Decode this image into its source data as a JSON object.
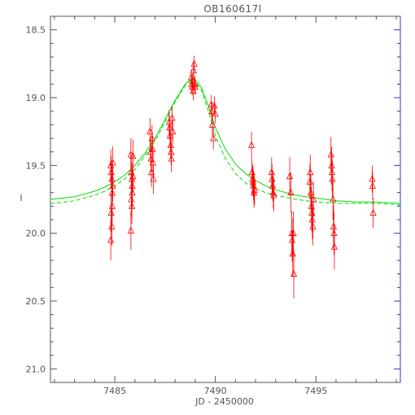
{
  "chart_data": {
    "type": "scatter",
    "title": "OB160617l",
    "xlabel": "JD - 2450000",
    "ylabel": "I",
    "xlim": [
      7481.8,
      7499.2
    ],
    "ylim": [
      21.1,
      18.4
    ],
    "y_inverted": true,
    "x_ticks": [
      7485,
      7490,
      7495
    ],
    "y_ticks": [
      18.5,
      19.0,
      19.5,
      20.0,
      20.5,
      21.0
    ],
    "x_tick_labels": [
      "7485",
      "7490",
      "7495"
    ],
    "y_tick_labels": [
      "18.5",
      "19.0",
      "19.5",
      "20.0",
      "20.5",
      "21.0"
    ],
    "grid": false,
    "colors": {
      "points": "#ff0000",
      "model": "#00dd00",
      "axes": "#555555",
      "right_axis": "#3333cc"
    },
    "series": [
      {
        "kind": "scatter_errorbar",
        "marker": "triangle",
        "x": [
          7484.8,
          7484.8,
          7484.82,
          7484.82,
          7484.85,
          7484.85,
          7484.87,
          7484.87,
          7484.9,
          7484.9,
          7485.8,
          7485.8,
          7485.82,
          7485.82,
          7485.85,
          7485.85,
          7485.87,
          7485.87,
          7485.9,
          7485.9,
          7486.75,
          7486.78,
          7486.8,
          7486.82,
          7486.85,
          7486.88,
          7486.9,
          7486.92,
          7487.7,
          7487.72,
          7487.75,
          7487.78,
          7487.8,
          7487.82,
          7487.85,
          7487.88,
          7488.8,
          7488.82,
          7488.85,
          7488.88,
          7488.9,
          7488.92,
          7488.95,
          7488.98,
          7489.0,
          7489.8,
          7489.82,
          7489.85,
          7489.9,
          7489.95,
          7490.0,
          7491.8,
          7491.82,
          7491.85,
          7491.88,
          7491.9,
          7491.92,
          7491.95,
          7492.8,
          7492.82,
          7492.85,
          7492.88,
          7492.9,
          7493.7,
          7493.75,
          7493.8,
          7493.82,
          7493.85,
          7493.88,
          7493.9,
          7494.7,
          7494.72,
          7494.75,
          7494.78,
          7494.8,
          7494.82,
          7494.85,
          7494.88,
          7495.75,
          7495.78,
          7495.8,
          7495.82,
          7495.85,
          7495.88,
          7495.9,
          7495.92,
          7497.8,
          7497.82,
          7497.85
        ],
        "y": [
          19.5,
          20.05,
          19.55,
          19.85,
          19.6,
          19.95,
          19.7,
          19.8,
          19.48,
          19.65,
          19.42,
          19.98,
          19.55,
          19.75,
          19.6,
          19.8,
          19.65,
          19.7,
          19.43,
          19.58,
          19.25,
          19.4,
          19.45,
          19.55,
          19.3,
          19.38,
          19.48,
          19.6,
          19.18,
          19.22,
          19.28,
          19.35,
          19.4,
          19.45,
          19.15,
          19.25,
          18.85,
          18.9,
          18.92,
          18.88,
          18.95,
          18.8,
          18.75,
          18.9,
          18.92,
          19.05,
          19.1,
          19.2,
          19.3,
          19.06,
          19.12,
          19.35,
          19.55,
          19.6,
          19.62,
          19.65,
          19.7,
          19.68,
          19.55,
          19.6,
          19.65,
          19.7,
          19.72,
          19.58,
          19.7,
          20.0,
          20.05,
          20.15,
          20.0,
          20.3,
          19.62,
          19.55,
          19.7,
          19.8,
          19.85,
          19.9,
          19.95,
          19.75,
          19.42,
          19.5,
          19.55,
          19.6,
          19.75,
          19.95,
          20.0,
          20.1,
          19.6,
          19.65,
          19.85
        ],
        "yerr": [
          0.12,
          0.15,
          0.12,
          0.14,
          0.13,
          0.14,
          0.12,
          0.13,
          0.12,
          0.12,
          0.12,
          0.14,
          0.12,
          0.13,
          0.12,
          0.13,
          0.12,
          0.12,
          0.12,
          0.12,
          0.1,
          0.1,
          0.1,
          0.11,
          0.1,
          0.1,
          0.1,
          0.11,
          0.09,
          0.09,
          0.09,
          0.1,
          0.1,
          0.1,
          0.09,
          0.09,
          0.06,
          0.06,
          0.06,
          0.06,
          0.07,
          0.06,
          0.06,
          0.06,
          0.06,
          0.07,
          0.07,
          0.08,
          0.08,
          0.07,
          0.07,
          0.1,
          0.1,
          0.11,
          0.11,
          0.11,
          0.11,
          0.11,
          0.11,
          0.11,
          0.11,
          0.12,
          0.12,
          0.14,
          0.15,
          0.16,
          0.16,
          0.17,
          0.16,
          0.18,
          0.13,
          0.13,
          0.13,
          0.14,
          0.14,
          0.14,
          0.14,
          0.13,
          0.13,
          0.14,
          0.14,
          0.14,
          0.15,
          0.16,
          0.16,
          0.17,
          0.1,
          0.1,
          0.11
        ]
      },
      {
        "kind": "model_line",
        "style": "solid",
        "x": [
          7481.8,
          7482.5,
          7483.0,
          7483.5,
          7484.0,
          7484.5,
          7485.0,
          7485.5,
          7486.0,
          7486.5,
          7487.0,
          7487.5,
          7488.0,
          7488.5,
          7488.9,
          7489.3,
          7489.7,
          7490.0,
          7490.5,
          7491.0,
          7491.5,
          7492.0,
          7492.5,
          7493.0,
          7494.0,
          7495.0,
          7496.0,
          7497.0,
          7498.0,
          7499.2
        ],
        "y": [
          19.75,
          19.74,
          19.73,
          19.71,
          19.69,
          19.66,
          19.62,
          19.57,
          19.5,
          19.41,
          19.3,
          19.16,
          19.02,
          18.9,
          18.85,
          18.92,
          19.08,
          19.22,
          19.38,
          19.49,
          19.56,
          19.61,
          19.65,
          19.68,
          19.72,
          19.74,
          19.76,
          19.77,
          19.77,
          19.78
        ]
      },
      {
        "kind": "model_line",
        "style": "dashed",
        "x": [
          7481.8,
          7482.5,
          7483.0,
          7483.5,
          7484.0,
          7484.5,
          7485.0,
          7485.5,
          7486.0,
          7486.5,
          7487.0,
          7487.5,
          7488.0,
          7488.5,
          7488.9,
          7489.3,
          7489.7,
          7490.0,
          7490.5,
          7491.0,
          7491.5,
          7492.0,
          7492.5,
          7493.0,
          7494.0,
          7495.0,
          7496.0,
          7497.0,
          7498.0,
          7499.2
        ],
        "y": [
          19.78,
          19.77,
          19.76,
          19.74,
          19.72,
          19.69,
          19.65,
          19.6,
          19.53,
          19.43,
          19.32,
          19.18,
          19.03,
          18.91,
          18.86,
          18.94,
          19.12,
          19.28,
          19.45,
          19.56,
          19.63,
          19.67,
          19.7,
          19.72,
          19.75,
          19.77,
          19.78,
          19.78,
          19.78,
          19.79
        ]
      }
    ]
  }
}
